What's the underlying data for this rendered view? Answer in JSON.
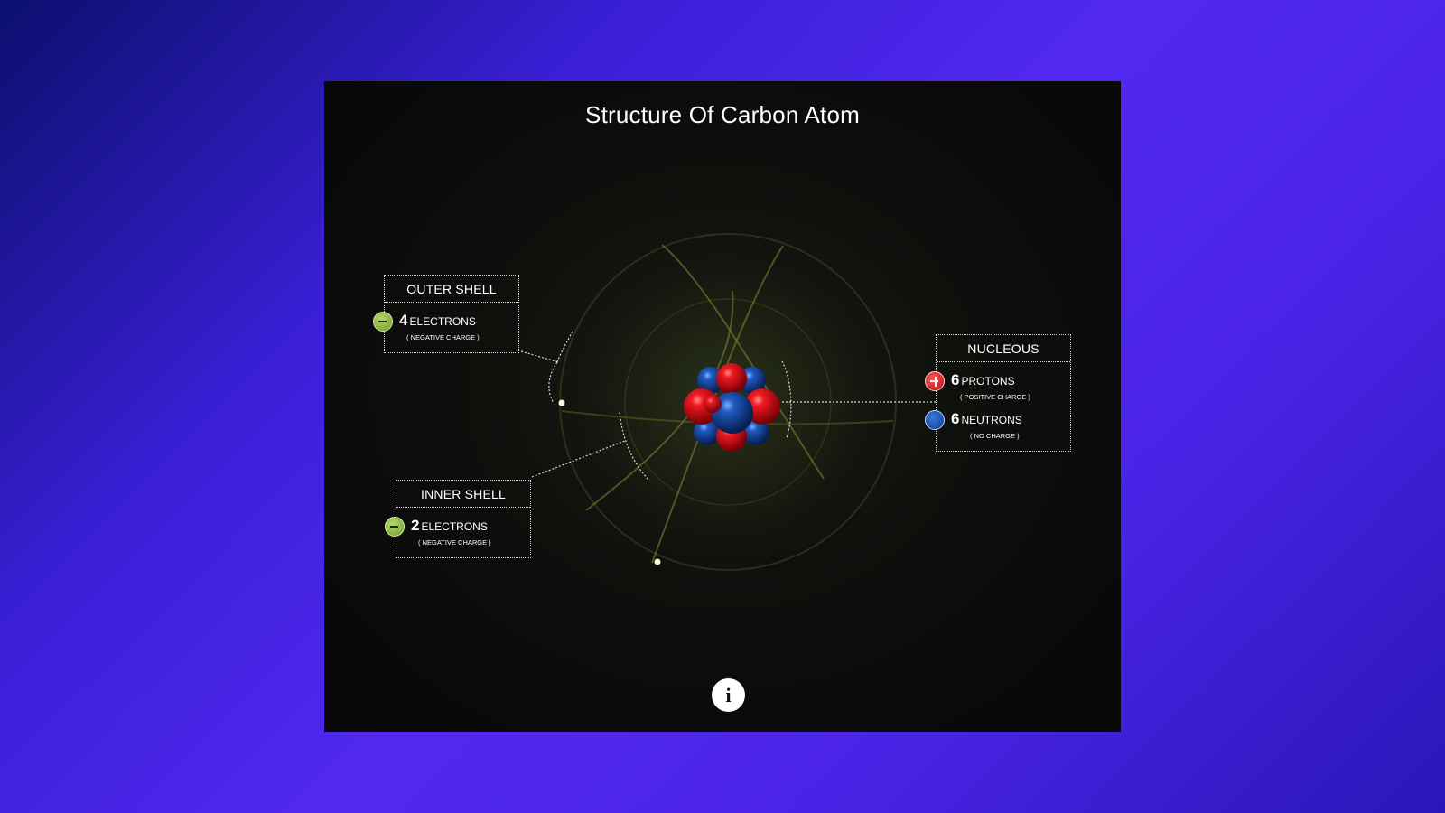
{
  "title": "Structure Of Carbon Atom",
  "outer_shell": {
    "heading": "OUTER SHELL",
    "count": "4",
    "unit": "ELECTRONS",
    "charge_note": "( NEGATIVE CHARGE )",
    "icon": "minus-icon"
  },
  "inner_shell": {
    "heading": "INNER SHELL",
    "count": "2",
    "unit": "ELECTRONS",
    "charge_note": "( NEGATIVE CHARGE )",
    "icon": "minus-icon"
  },
  "nucleus": {
    "heading": "NUCLEOUS",
    "protons": {
      "count": "6",
      "unit": "PROTONS",
      "charge_note": "( POSITIVE CHARGE )",
      "icon": "plus-icon"
    },
    "neutrons": {
      "count": "6",
      "unit": "NEUTRONS",
      "charge_note": "( NO CHARGE )",
      "icon": "neutral-icon"
    }
  },
  "info_button": {
    "label": "i",
    "icon": "info-icon"
  },
  "colors": {
    "proton": "#d8141c",
    "neutron": "#164b9e",
    "electron_badge": "#8fbf45",
    "orbit": "#6a7a2a",
    "background_from": "#0b0f6e",
    "background_to": "#5128f0"
  }
}
